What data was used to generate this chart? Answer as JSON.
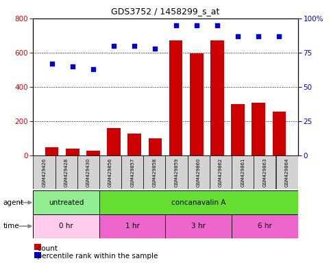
{
  "title": "GDS3752 / 1458299_s_at",
  "samples": [
    "GSM429426",
    "GSM429428",
    "GSM429430",
    "GSM429856",
    "GSM429857",
    "GSM429858",
    "GSM429859",
    "GSM429860",
    "GSM429862",
    "GSM429861",
    "GSM429863",
    "GSM429864"
  ],
  "counts": [
    45,
    40,
    25,
    160,
    125,
    100,
    670,
    595,
    670,
    300,
    305,
    255
  ],
  "percentile_ranks": [
    67,
    65,
    63,
    80,
    80,
    78,
    95,
    95,
    95,
    87,
    87,
    87
  ],
  "ylim_left": [
    0,
    800
  ],
  "ylim_right": [
    0,
    100
  ],
  "yticks_left": [
    0,
    200,
    400,
    600,
    800
  ],
  "yticks_right": [
    0,
    25,
    50,
    75,
    100
  ],
  "agent_groups": [
    {
      "label": "untreated",
      "start": 0,
      "end": 3,
      "color": "#90EE90"
    },
    {
      "label": "concanavalin A",
      "start": 3,
      "end": 12,
      "color": "#66DD33"
    }
  ],
  "time_groups": [
    {
      "label": "0 hr",
      "start": 0,
      "end": 3,
      "color": "#FFCCEE"
    },
    {
      "label": "1 hr",
      "start": 3,
      "end": 6,
      "color": "#EE66CC"
    },
    {
      "label": "3 hr",
      "start": 6,
      "end": 9,
      "color": "#EE66CC"
    },
    {
      "label": "6 hr",
      "start": 9,
      "end": 12,
      "color": "#EE66CC"
    }
  ],
  "bar_color": "#CC0000",
  "dot_color": "#0000CC",
  "tick_color_left": "#CC0000",
  "tick_color_right": "#0000CC",
  "bg_color": "#FFFFFF",
  "sample_bg_color": "#D3D3D3"
}
